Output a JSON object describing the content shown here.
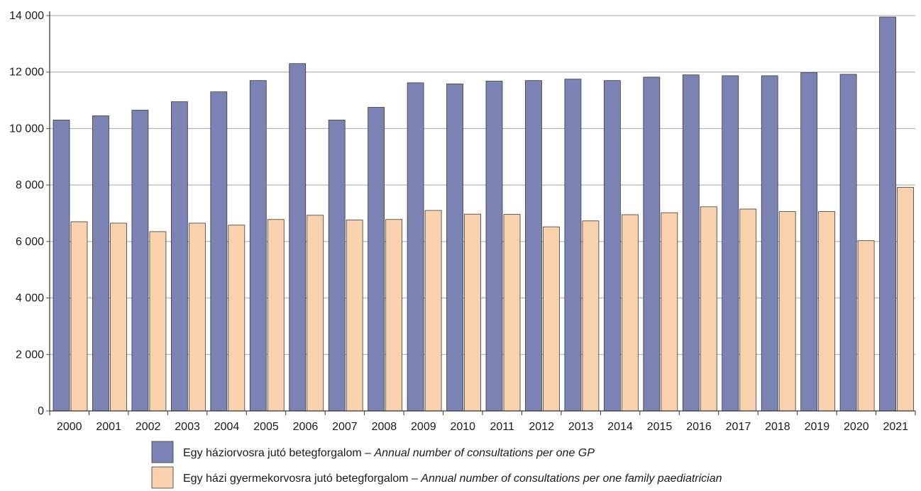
{
  "chart_data": {
    "type": "bar",
    "categories": [
      "2000",
      "2001",
      "2002",
      "2003",
      "2004",
      "2005",
      "2006",
      "2007",
      "2008",
      "2009",
      "2010",
      "2011",
      "2012",
      "2013",
      "2014",
      "2015",
      "2016",
      "2017",
      "2018",
      "2019",
      "2020",
      "2021"
    ],
    "series": [
      {
        "name": "Egy háziorvosra jutó betegforgalom – Annual number of consultations per one GP",
        "name_hu": "Egy háziorvosra jutó betegforgalom – ",
        "name_en": "Annual number of consultations per one GP",
        "color": "#7b83b5",
        "values": [
          10300,
          10450,
          10650,
          10950,
          11300,
          11700,
          12300,
          10300,
          10750,
          11620,
          11580,
          11680,
          11700,
          11750,
          11700,
          11820,
          11900,
          11870,
          11870,
          11980,
          11920,
          13950
        ]
      },
      {
        "name": "Egy házi gyermekorvosra jutó betegforgalom – Annual number of consultations per one family paediatrician",
        "name_hu": "Egy házi gyermekorvosra jutó betegforgalom – ",
        "name_en": "Annual number of consultations per one family paediatrician",
        "color": "#fad1ad",
        "values": [
          6700,
          6650,
          6350,
          6650,
          6580,
          6780,
          6930,
          6760,
          6780,
          7100,
          6970,
          6960,
          6520,
          6730,
          6950,
          7020,
          7230,
          7150,
          7060,
          7060,
          6030,
          7920
        ]
      }
    ],
    "y_ticks": [
      "0",
      "2 000",
      "4 000",
      "6 000",
      "8 000",
      "10 000",
      "12 000",
      "14 000"
    ],
    "ylim": [
      0,
      14000
    ],
    "grid": true,
    "legend_position": "bottom"
  }
}
